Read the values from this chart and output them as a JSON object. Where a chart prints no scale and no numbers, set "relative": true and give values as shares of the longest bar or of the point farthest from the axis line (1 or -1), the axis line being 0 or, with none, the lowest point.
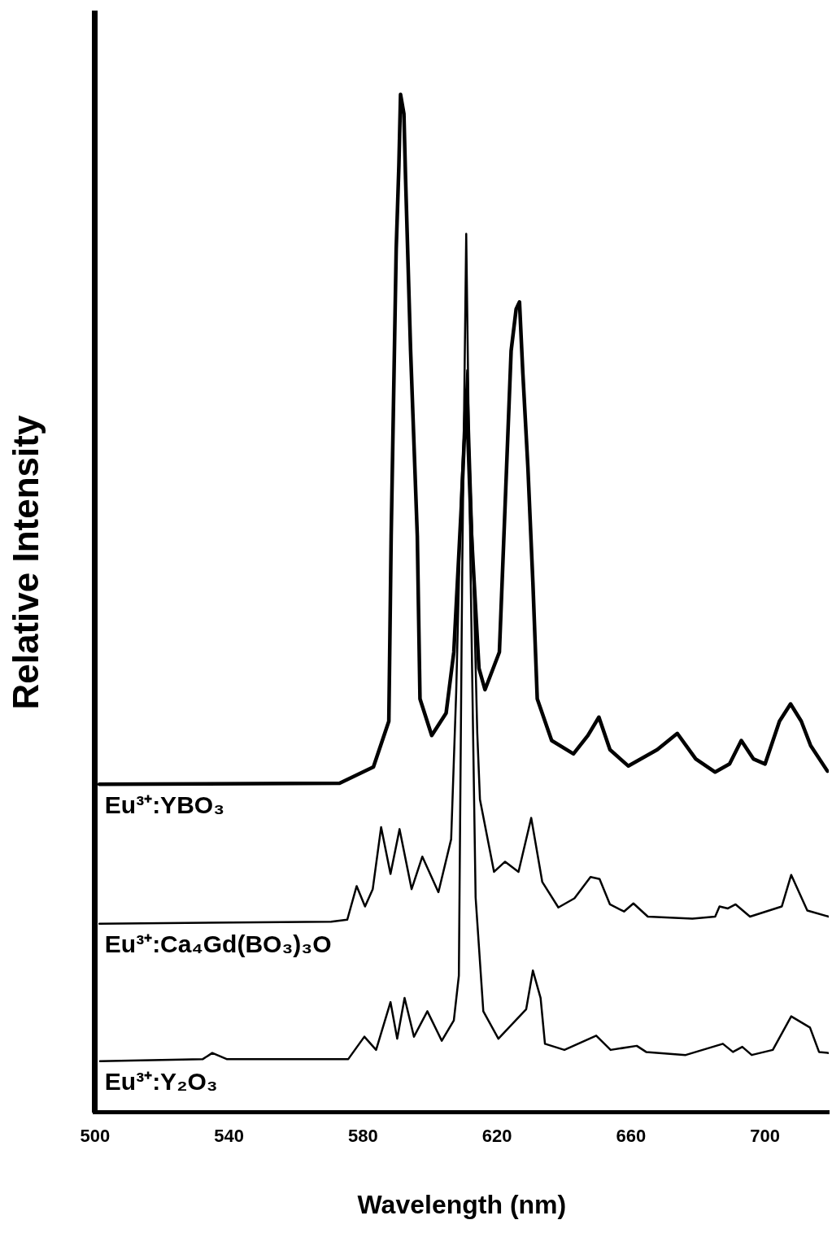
{
  "chart_data": {
    "type": "line",
    "relative": true,
    "xlabel": "Wavelength (nm)",
    "ylabel": "Relative Intensity",
    "xlim": [
      500,
      719
    ],
    "xticks": [
      500,
      540,
      580,
      620,
      660,
      700
    ],
    "grid": false,
    "legend": false,
    "marker": "none",
    "line_style": "solid",
    "series": [
      {
        "name": "Eu³⁺:YBO₃",
        "color": "#000000",
        "x": [
          501.3,
          573.0,
          583.1,
          587.7,
          588.4,
          589.9,
          590.7,
          591.2,
          592.2,
          592.7,
          594.2,
          596.2,
          597.0,
          600.5,
          604.8,
          607.1,
          609.6,
          610.8,
          612.3,
          614.6,
          616.4,
          620.7,
          624.2,
          625.7,
          626.7,
          627.7,
          629.2,
          630.7,
          632.0,
          636.3,
          642.8,
          647.1,
          650.4,
          653.7,
          659.2,
          667.8,
          673.8,
          679.3,
          685.1,
          689.4,
          692.9,
          696.5,
          700.0,
          704.3,
          707.6,
          710.8,
          713.6,
          718.6
        ],
        "values": [
          0.322,
          0.323,
          0.339,
          0.384,
          0.566,
          0.848,
          0.93,
          1.0,
          0.981,
          0.917,
          0.748,
          0.566,
          0.406,
          0.37,
          0.392,
          0.452,
          0.612,
          0.709,
          0.572,
          0.436,
          0.415,
          0.452,
          0.748,
          0.789,
          0.796,
          0.726,
          0.634,
          0.52,
          0.406,
          0.365,
          0.352,
          0.37,
          0.388,
          0.356,
          0.34,
          0.356,
          0.372,
          0.347,
          0.334,
          0.342,
          0.365,
          0.347,
          0.342,
          0.384,
          0.401,
          0.384,
          0.36,
          0.335
        ]
      },
      {
        "name": "Eu³⁺:Ca₄Gd(BO₃)₃O",
        "color": "#000000",
        "x": [
          501.3,
          570.5,
          575.3,
          578.1,
          580.6,
          582.9,
          585.4,
          588.2,
          590.9,
          594.5,
          597.7,
          602.5,
          606.3,
          607.8,
          609.3,
          611.1,
          612.6,
          614.1,
          614.9,
          619.1,
          622.4,
          626.4,
          630.2,
          633.5,
          638.3,
          643.1,
          647.9,
          650.6,
          653.7,
          657.9,
          660.7,
          665.0,
          678.3,
          685.1,
          686.4,
          688.9,
          691.2,
          695.5,
          705.0,
          707.8,
          712.6,
          719.0
        ],
        "values": [
          0.185,
          0.187,
          0.189,
          0.222,
          0.202,
          0.219,
          0.28,
          0.234,
          0.278,
          0.219,
          0.251,
          0.216,
          0.268,
          0.412,
          0.612,
          0.729,
          0.572,
          0.372,
          0.307,
          0.236,
          0.246,
          0.236,
          0.289,
          0.226,
          0.201,
          0.21,
          0.231,
          0.229,
          0.204,
          0.197,
          0.205,
          0.192,
          0.19,
          0.192,
          0.202,
          0.2,
          0.204,
          0.192,
          0.202,
          0.233,
          0.198,
          0.192
        ]
      },
      {
        "name": "Eu³⁺:Y₂O₃",
        "color": "#000000",
        "x": [
          501.5,
          532.2,
          535.0,
          539.3,
          575.6,
          580.4,
          583.9,
          588.2,
          590.2,
          592.4,
          595.2,
          599.2,
          603.5,
          607.1,
          608.6,
          609.6,
          610.8,
          612.1,
          613.6,
          615.9,
          620.4,
          628.7,
          630.7,
          633.0,
          634.3,
          640.1,
          649.6,
          653.9,
          661.7,
          664.5,
          676.3,
          687.4,
          690.4,
          693.2,
          696.0,
          702.3,
          707.8,
          713.4,
          716.1,
          718.9
        ],
        "values": [
          0.05,
          0.052,
          0.058,
          0.052,
          0.052,
          0.074,
          0.061,
          0.108,
          0.072,
          0.112,
          0.074,
          0.099,
          0.07,
          0.09,
          0.134,
          0.532,
          0.863,
          0.532,
          0.211,
          0.099,
          0.072,
          0.101,
          0.139,
          0.112,
          0.067,
          0.061,
          0.075,
          0.061,
          0.065,
          0.059,
          0.056,
          0.067,
          0.059,
          0.064,
          0.056,
          0.061,
          0.094,
          0.083,
          0.059,
          0.058
        ]
      }
    ]
  }
}
